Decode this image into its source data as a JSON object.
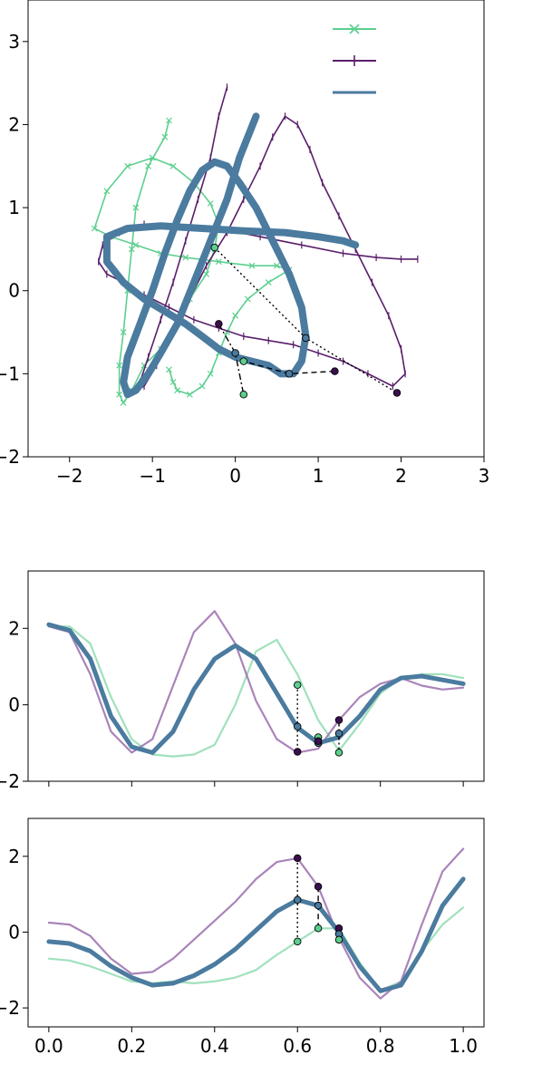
{
  "chart_data": [
    {
      "type": "line",
      "title": "",
      "xlabel": "",
      "ylabel": "",
      "xlim": [
        -2.5,
        3.0
      ],
      "ylim": [
        -2.0,
        3.5
      ],
      "xticks": [
        "−2",
        "−1",
        "0",
        "1",
        "2",
        "3"
      ],
      "yticks": [
        "−2",
        "−1",
        "0",
        "1",
        "2",
        "3"
      ],
      "xtick_values": [
        -2,
        -1,
        0,
        1,
        2,
        3
      ],
      "ytick_values": [
        -2,
        -1,
        0,
        1,
        2,
        3
      ],
      "grid": false,
      "legend_placement": "top-right",
      "series": [
        {
          "color": "#5ccf8e",
          "marker": "x",
          "x": [
            -0.8,
            -0.85,
            -1.05,
            -1.2,
            -1.25,
            -1.3,
            -1.35,
            -1.4,
            -1.4,
            -1.35,
            -1.25,
            -1.1,
            -0.9,
            -0.7,
            -0.55,
            -0.35,
            -0.25,
            -0.2,
            -0.3,
            -0.5,
            -0.75,
            -1.0,
            -1.3,
            -1.55,
            -1.7,
            -1.5,
            -1.2,
            -0.9,
            -0.6,
            -0.2,
            0.2,
            0.5,
            0.65,
            0.4,
            0.15,
            0.0,
            -0.1,
            -0.2,
            -0.3,
            -0.4,
            -0.55,
            -0.7,
            -0.75,
            -0.8
          ],
          "y": [
            2.05,
            1.85,
            1.5,
            1.0,
            0.5,
            0.0,
            -0.5,
            -0.9,
            -1.25,
            -1.35,
            -1.2,
            -0.9,
            -0.7,
            -0.4,
            -0.1,
            0.2,
            0.5,
            0.8,
            1.05,
            1.3,
            1.5,
            1.6,
            1.5,
            1.2,
            0.75,
            0.65,
            0.55,
            0.45,
            0.4,
            0.35,
            0.3,
            0.3,
            0.25,
            0.1,
            -0.1,
            -0.3,
            -0.5,
            -0.75,
            -1.0,
            -1.15,
            -1.25,
            -1.2,
            -1.1,
            -0.95
          ]
        },
        {
          "color": "#5a1f6a",
          "marker": "|",
          "x": [
            -0.1,
            -0.2,
            -0.3,
            -0.45,
            -0.6,
            -0.75,
            -0.9,
            -1.05,
            -1.15,
            -1.2,
            -1.1,
            -0.95,
            -0.75,
            -0.55,
            -0.35,
            -0.1,
            0.1,
            0.3,
            0.45,
            0.6,
            0.75,
            0.9,
            1.05,
            1.25,
            1.45,
            1.65,
            1.85,
            2.0,
            2.05,
            1.9,
            1.6,
            1.3,
            1.0,
            0.7,
            0.4,
            0.1,
            -0.2,
            -0.5,
            -0.8,
            -1.1,
            -1.35,
            -1.55,
            -1.65,
            -1.6,
            -1.4,
            -1.1,
            -0.7,
            -0.2,
            0.3,
            0.8,
            1.3,
            1.7,
            2.0,
            2.2
          ],
          "y": [
            2.45,
            2.1,
            1.6,
            1.1,
            0.6,
            0.1,
            -0.35,
            -0.8,
            -1.1,
            -1.2,
            -1.15,
            -0.9,
            -0.5,
            -0.1,
            0.3,
            0.7,
            1.1,
            1.5,
            1.85,
            2.1,
            2.0,
            1.7,
            1.3,
            0.9,
            0.5,
            0.1,
            -0.3,
            -0.7,
            -1.0,
            -1.15,
            -1.0,
            -0.85,
            -0.75,
            -0.65,
            -0.6,
            -0.55,
            -0.45,
            -0.35,
            -0.2,
            -0.05,
            0.1,
            0.2,
            0.35,
            0.55,
            0.7,
            0.8,
            0.8,
            0.75,
            0.65,
            0.55,
            0.45,
            0.4,
            0.38,
            0.38
          ]
        },
        {
          "color": "#4b7b9f",
          "marker": "",
          "x": [
            0.25,
            0.05,
            -0.1,
            -0.3,
            -0.5,
            -0.7,
            -0.9,
            -1.05,
            -1.2,
            -1.3,
            -1.35,
            -1.3,
            -1.15,
            -1.0,
            -0.85,
            -0.7,
            -0.55,
            -0.4,
            -0.25,
            -0.1,
            0.05,
            0.25,
            0.45,
            0.65,
            0.8,
            0.85,
            0.8,
            0.7,
            0.55,
            0.4,
            0.2,
            0.0,
            -0.2,
            -0.4,
            -0.6,
            -0.85,
            -1.1,
            -1.35,
            -1.55,
            -1.55,
            -1.3,
            -0.9,
            -0.4,
            0.1,
            0.6,
            1.0,
            1.3,
            1.45
          ],
          "y": [
            2.1,
            1.6,
            1.1,
            0.6,
            0.1,
            -0.4,
            -0.75,
            -1.0,
            -1.2,
            -1.25,
            -1.1,
            -0.8,
            -0.4,
            0.0,
            0.45,
            0.85,
            1.2,
            1.45,
            1.55,
            1.5,
            1.3,
            1.0,
            0.6,
            0.2,
            -0.2,
            -0.55,
            -0.85,
            -1.0,
            -1.0,
            -0.9,
            -0.85,
            -0.8,
            -0.7,
            -0.55,
            -0.4,
            -0.25,
            -0.1,
            0.1,
            0.35,
            0.65,
            0.75,
            0.78,
            0.75,
            0.72,
            0.7,
            0.65,
            0.6,
            0.55
          ]
        }
      ],
      "annotations": [
        {
          "style": "dotted",
          "points": [
            [
              -0.25,
              0.52
            ],
            [
              0.85,
              -0.57
            ],
            [
              1.95,
              -1.23
            ]
          ],
          "colors": [
            "#5ccf8e",
            "#4b7b9f",
            "#3b0f4e"
          ]
        },
        {
          "style": "dashed",
          "points": [
            [
              1.2,
              -0.97
            ],
            [
              0.65,
              -1.0
            ],
            [
              0.1,
              -0.85
            ]
          ],
          "colors": [
            "#3b0f4e",
            "#4b7b9f",
            "#5ccf8e"
          ]
        },
        {
          "style": "dashdot",
          "points": [
            [
              -0.2,
              -0.4
            ],
            [
              0.0,
              -0.75
            ],
            [
              0.1,
              -1.25
            ]
          ],
          "colors": [
            "#3b0f4e",
            "#4b7b9f",
            "#5ccf8e"
          ]
        }
      ]
    },
    {
      "type": "line",
      "title": "",
      "xlabel": "",
      "ylabel": "",
      "xlim": [
        -0.05,
        1.05
      ],
      "ylim": [
        -2.0,
        3.5
      ],
      "xtick_values": [
        0.0,
        0.2,
        0.4,
        0.6,
        0.8,
        1.0
      ],
      "yticks": [
        "−2",
        "0",
        "2"
      ],
      "ytick_values": [
        -2,
        0,
        2
      ],
      "grid": false,
      "series": [
        {
          "color": "#8fdcb0",
          "x": [
            0.0,
            0.05,
            0.1,
            0.15,
            0.2,
            0.25,
            0.3,
            0.35,
            0.4,
            0.45,
            0.5,
            0.55,
            0.6,
            0.65,
            0.7,
            0.75,
            0.8,
            0.85,
            0.9,
            0.95,
            1.0
          ],
          "y": [
            2.05,
            2.05,
            1.6,
            0.2,
            -0.9,
            -1.3,
            -1.35,
            -1.3,
            -1.05,
            0.0,
            1.4,
            1.7,
            0.8,
            -0.4,
            -1.2,
            -0.5,
            0.3,
            0.7,
            0.8,
            0.8,
            0.7
          ]
        },
        {
          "color": "#9b6ead",
          "x": [
            0.0,
            0.05,
            0.1,
            0.15,
            0.2,
            0.25,
            0.3,
            0.35,
            0.4,
            0.45,
            0.5,
            0.55,
            0.6,
            0.65,
            0.7,
            0.75,
            0.8,
            0.85,
            0.9,
            0.95,
            1.0
          ],
          "y": [
            2.05,
            1.9,
            0.8,
            -0.7,
            -1.25,
            -0.9,
            0.5,
            1.9,
            2.45,
            1.6,
            0.1,
            -0.9,
            -1.25,
            -1.15,
            -0.4,
            0.2,
            0.55,
            0.7,
            0.5,
            0.4,
            0.45
          ]
        },
        {
          "color": "#4b7b9f",
          "x": [
            0.0,
            0.05,
            0.1,
            0.15,
            0.2,
            0.25,
            0.3,
            0.35,
            0.4,
            0.45,
            0.5,
            0.55,
            0.6,
            0.65,
            0.7,
            0.75,
            0.8,
            0.85,
            0.9,
            0.95,
            1.0
          ],
          "y": [
            2.1,
            1.95,
            1.2,
            -0.3,
            -1.1,
            -1.25,
            -0.7,
            0.4,
            1.2,
            1.55,
            1.2,
            0.3,
            -0.6,
            -1.0,
            -0.85,
            -0.3,
            0.4,
            0.7,
            0.75,
            0.65,
            0.55
          ]
        }
      ],
      "annotations": [
        {
          "style": "dotted",
          "x": 0.6,
          "y": [
            0.52,
            -0.57,
            -1.23
          ]
        },
        {
          "style": "dashed",
          "x": 0.65,
          "y": [
            -0.85,
            -1.0,
            -0.95
          ]
        },
        {
          "style": "dashdot",
          "x": 0.7,
          "y": [
            -0.4,
            -0.75,
            -1.25
          ]
        }
      ]
    },
    {
      "type": "line",
      "title": "",
      "xlabel": "",
      "ylabel": "",
      "xlim": [
        -0.05,
        1.05
      ],
      "ylim": [
        -2.5,
        3.0
      ],
      "xticks": [
        "0.0",
        "0.2",
        "0.4",
        "0.6",
        "0.8",
        "1.0"
      ],
      "xtick_values": [
        0.0,
        0.2,
        0.4,
        0.6,
        0.8,
        1.0
      ],
      "yticks": [
        "−2",
        "0",
        "2"
      ],
      "ytick_values": [
        -2,
        0,
        2
      ],
      "grid": false,
      "series": [
        {
          "color": "#8fdcb0",
          "x": [
            0.0,
            0.05,
            0.1,
            0.15,
            0.2,
            0.25,
            0.3,
            0.35,
            0.4,
            0.45,
            0.5,
            0.55,
            0.6,
            0.65,
            0.7,
            0.75,
            0.8,
            0.85,
            0.9,
            0.95,
            1.0
          ],
          "y": [
            -0.7,
            -0.75,
            -0.9,
            -1.1,
            -1.3,
            -1.35,
            -1.3,
            -1.35,
            -1.3,
            -1.2,
            -1.0,
            -0.6,
            -0.25,
            0.1,
            0.1,
            -0.8,
            -1.55,
            -1.3,
            -0.5,
            0.2,
            0.65
          ]
        },
        {
          "color": "#9b6ead",
          "x": [
            0.0,
            0.05,
            0.1,
            0.15,
            0.2,
            0.25,
            0.3,
            0.35,
            0.4,
            0.45,
            0.5,
            0.55,
            0.6,
            0.65,
            0.7,
            0.75,
            0.8,
            0.85,
            0.9,
            0.95,
            1.0
          ],
          "y": [
            0.25,
            0.2,
            -0.1,
            -0.7,
            -1.1,
            -1.05,
            -0.7,
            -0.2,
            0.3,
            0.8,
            1.4,
            1.85,
            1.95,
            1.2,
            -0.15,
            -1.2,
            -1.75,
            -1.3,
            0.2,
            1.6,
            2.2
          ]
        },
        {
          "color": "#4b7b9f",
          "x": [
            0.0,
            0.05,
            0.1,
            0.15,
            0.2,
            0.25,
            0.3,
            0.35,
            0.4,
            0.45,
            0.5,
            0.55,
            0.6,
            0.65,
            0.7,
            0.75,
            0.8,
            0.85,
            0.9,
            0.95,
            1.0
          ],
          "y": [
            -0.25,
            -0.3,
            -0.5,
            -0.9,
            -1.2,
            -1.4,
            -1.35,
            -1.15,
            -0.85,
            -0.45,
            0.05,
            0.55,
            0.85,
            0.7,
            0.0,
            -0.9,
            -1.55,
            -1.4,
            -0.5,
            0.7,
            1.4
          ]
        }
      ],
      "annotations": [
        {
          "style": "dotted",
          "x": 0.6,
          "y": [
            1.95,
            0.85,
            -0.25
          ]
        },
        {
          "style": "dashed",
          "x": 0.65,
          "y": [
            1.2,
            0.7,
            0.1
          ]
        },
        {
          "style": "dashdot",
          "x": 0.7,
          "y": [
            0.1,
            -0.05,
            -0.2
          ]
        }
      ]
    }
  ]
}
